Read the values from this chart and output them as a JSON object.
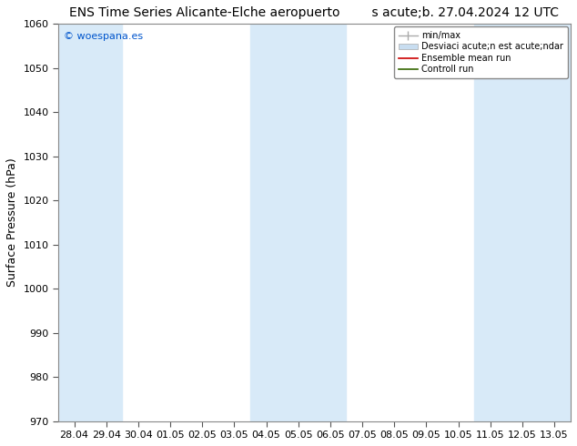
{
  "title_left": "ENS Time Series Alicante-Elche aeropuerto",
  "title_right": "s acute;b. 27.04.2024 12 UTC",
  "ylabel": "Surface Pressure (hPa)",
  "ylim": [
    970,
    1060
  ],
  "yticks": [
    970,
    980,
    990,
    1000,
    1010,
    1020,
    1030,
    1040,
    1050,
    1060
  ],
  "xtick_labels": [
    "28.04",
    "29.04",
    "30.04",
    "01.05",
    "02.05",
    "03.05",
    "04.05",
    "05.05",
    "06.05",
    "07.05",
    "08.05",
    "09.05",
    "10.05",
    "11.05",
    "12.05",
    "13.05"
  ],
  "watermark": "© woespana.es",
  "watermark_color": "#0055cc",
  "bg_color": "#ffffff",
  "shaded_band_color": "#d8eaf8",
  "shaded_intervals": [
    [
      0,
      1
    ],
    [
      6,
      8
    ],
    [
      13,
      15
    ]
  ],
  "legend_line1_label": "min/max",
  "legend_line1_color": "#aaaaaa",
  "legend_band_label": "Desviaci acute;n est acute;ndar",
  "legend_band_color": "#c8ddf0",
  "legend_line3_label": "Ensemble mean run",
  "legend_line3_color": "#cc0000",
  "legend_line4_label": "Controll run",
  "legend_line4_color": "#336600",
  "tick_color": "#555555",
  "spine_color": "#888888",
  "title_fontsize": 10,
  "axis_label_fontsize": 9,
  "tick_fontsize": 8,
  "watermark_fontsize": 8,
  "legend_fontsize": 7
}
